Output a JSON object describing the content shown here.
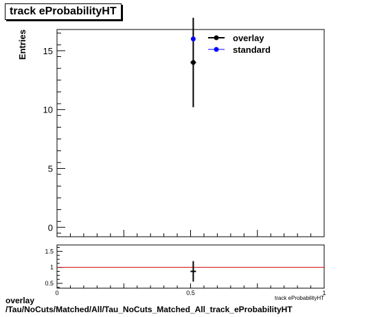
{
  "title": "track eProbabilityHT",
  "footer": {
    "line1": "overlay",
    "line2": "/Tau/NoCuts/Matched/All/Tau_NoCuts_Matched_All_track_eProbabilityHT"
  },
  "colors": {
    "overlay": "#000000",
    "standard": "#0000ff",
    "ratio_line": "#cc0000"
  },
  "chart_data": [
    {
      "type": "scatter",
      "title": "track eProbabilityHT",
      "ylabel": "Entries",
      "xlim": [
        0,
        1
      ],
      "ylim": [
        -0.8,
        16.8
      ],
      "yticks": [
        0,
        5,
        10,
        15
      ],
      "legend": "top-right",
      "grid": false,
      "series": [
        {
          "name": "overlay",
          "x": [
            0.51
          ],
          "y": [
            14
          ],
          "yerr_low": [
            3.8
          ],
          "yerr_high": [
            3.8
          ]
        },
        {
          "name": "standard",
          "x": [
            0.51
          ],
          "y": [
            16
          ]
        }
      ]
    },
    {
      "type": "scatter",
      "xlabel": "track eProbabilityHT",
      "xlim": [
        0,
        1
      ],
      "ylim": [
        0.35,
        1.7
      ],
      "xticks": [
        "0",
        "0.5",
        "1"
      ],
      "yticks": [
        "0.5",
        "1",
        "1.5"
      ],
      "reference_line": 1,
      "series": [
        {
          "x": [
            0.51
          ],
          "y": [
            0.875
          ],
          "yerr_low": [
            0.32
          ],
          "yerr_high": [
            0.32
          ]
        }
      ]
    }
  ]
}
